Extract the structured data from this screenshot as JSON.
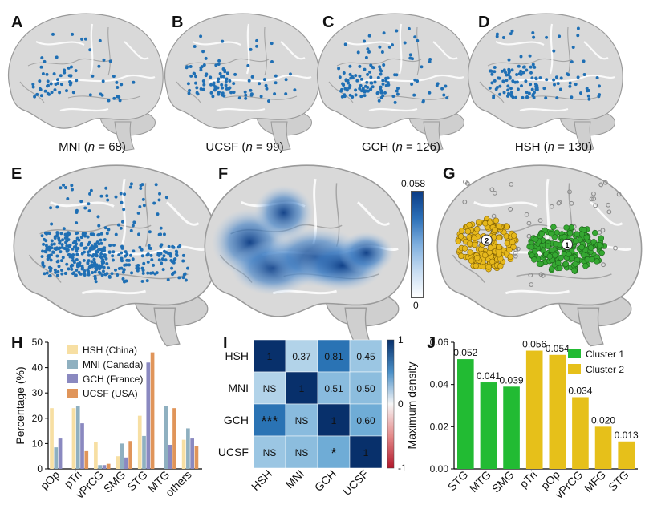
{
  "panels": {
    "A": {
      "label": "A",
      "atlas": "MNI",
      "n": "68"
    },
    "B": {
      "label": "B",
      "atlas": "UCSF",
      "n": "99"
    },
    "C": {
      "label": "C",
      "atlas": "GCH",
      "n": "126"
    },
    "D": {
      "label": "D",
      "atlas": "HSH",
      "n": "130"
    },
    "E": {
      "label": "E"
    },
    "F": {
      "label": "F",
      "colorbar_max": "0.058",
      "colorbar_min": "0"
    },
    "G": {
      "label": "G",
      "cluster_marker_1": "1",
      "cluster_marker_2": "2"
    },
    "H": {
      "label": "H"
    },
    "I": {
      "label": "I"
    },
    "J": {
      "label": "J"
    }
  },
  "caption_n_symbol": "n",
  "colors": {
    "dot": "#1f6fb4",
    "cluster1": "#35a832",
    "cluster2": "#e6b81c",
    "gray": "#8a8a8a"
  },
  "chart_data": [
    {
      "id": "H",
      "type": "bar",
      "ylabel": "Percentage (%)",
      "ylim": [
        0,
        50
      ],
      "yticks": [
        0,
        10,
        20,
        30,
        40,
        50
      ],
      "categories": [
        "pOp",
        "pTri",
        "vPrCG",
        "SMG",
        "STG",
        "MTG",
        "others"
      ],
      "series": [
        {
          "name": "HSH (China)",
          "color": "#f7dfa3",
          "values": [
            24,
            24,
            10.5,
            5,
            21,
            0,
            11.5
          ]
        },
        {
          "name": "MNI (Canada)",
          "color": "#8fb0c0",
          "values": [
            8.5,
            25,
            1.5,
            10,
            13,
            25,
            16
          ]
        },
        {
          "name": "GCH (France)",
          "color": "#8a89c0",
          "values": [
            12,
            18,
            1.5,
            4.5,
            42,
            9.5,
            12
          ]
        },
        {
          "name": "UCSF (USA)",
          "color": "#e0955a",
          "values": [
            0,
            7,
            2,
            11,
            46,
            24,
            9
          ]
        }
      ]
    },
    {
      "id": "I",
      "type": "heatmap",
      "rows": [
        "HSH",
        "MNI",
        "GCH",
        "UCSF"
      ],
      "cols": [
        "HSH",
        "MNI",
        "GCH",
        "UCSF"
      ],
      "cells": [
        [
          {
            "v": 1,
            "t": "1"
          },
          {
            "v": 0.37,
            "t": "0.37"
          },
          {
            "v": 0.81,
            "t": "0.81"
          },
          {
            "v": 0.45,
            "t": "0.45"
          }
        ],
        [
          {
            "v": 0.37,
            "t": "NS"
          },
          {
            "v": 1,
            "t": "1"
          },
          {
            "v": 0.51,
            "t": "0.51"
          },
          {
            "v": 0.5,
            "t": "0.50"
          }
        ],
        [
          {
            "v": 0.81,
            "t": "***"
          },
          {
            "v": 0.51,
            "t": "NS"
          },
          {
            "v": 1,
            "t": "1"
          },
          {
            "v": 0.6,
            "t": "0.60"
          }
        ],
        [
          {
            "v": 0.45,
            "t": "NS"
          },
          {
            "v": 0.5,
            "t": "NS"
          },
          {
            "v": 0.6,
            "t": "*"
          },
          {
            "v": 1,
            "t": "1"
          }
        ]
      ],
      "colorbar_ticks": [
        "1",
        "0",
        "-1"
      ],
      "clim": [
        -1,
        1
      ]
    },
    {
      "id": "J",
      "type": "bar",
      "ylabel": "Maximum density",
      "ylim": [
        0,
        0.06
      ],
      "yticks": [
        "0.00",
        "0.02",
        "0.04",
        "0.06"
      ],
      "categories": [
        "STG",
        "MTG",
        "SMG",
        "pTri",
        "pOp",
        "vPrCG",
        "MFG",
        "STG"
      ],
      "values": [
        0.052,
        0.041,
        0.039,
        0.056,
        0.054,
        0.034,
        0.02,
        0.013
      ],
      "value_labels": [
        "0.052",
        "0.041",
        "0.039",
        "0.056",
        "0.054",
        "0.034",
        "0.020",
        "0.013"
      ],
      "cluster": [
        1,
        1,
        1,
        2,
        2,
        2,
        2,
        2
      ],
      "legend": [
        {
          "name": "Cluster 1",
          "color": "#22bb33"
        },
        {
          "name": "Cluster 2",
          "color": "#e6c01a"
        }
      ]
    }
  ]
}
